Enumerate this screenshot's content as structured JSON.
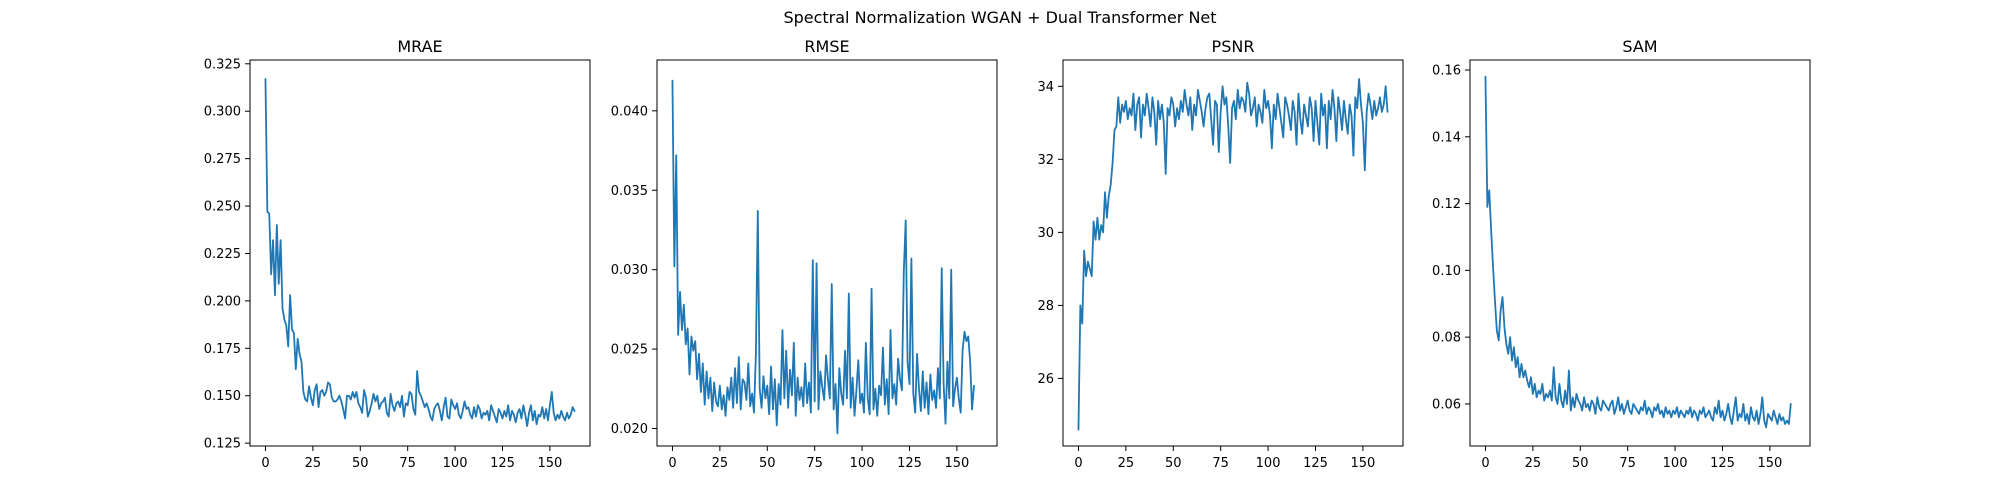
{
  "figure_title": "Spectral Normalization WGAN + Dual Transformer Net",
  "line_color": "#1f77b4",
  "chart_data": [
    {
      "type": "line",
      "title": "MRAE",
      "xlabel": "",
      "ylabel": "",
      "xlim": [
        -8.15,
        171.15
      ],
      "ylim": [
        0.1235,
        0.327
      ],
      "xticks": [
        0,
        25,
        50,
        75,
        100,
        125,
        150
      ],
      "yticks": [
        0.125,
        0.15,
        0.175,
        0.2,
        0.225,
        0.25,
        0.275,
        0.3,
        0.325
      ],
      "ytick_labels": [
        "0.125",
        "0.150",
        "0.175",
        "0.200",
        "0.225",
        "0.250",
        "0.275",
        "0.300",
        "0.325"
      ],
      "grid": false,
      "series": [
        {
          "values": [
            0.317,
            0.247,
            0.246,
            0.214,
            0.232,
            0.203,
            0.24,
            0.209,
            0.232,
            0.196,
            0.19,
            0.187,
            0.176,
            0.203,
            0.185,
            0.183,
            0.164,
            0.18,
            0.172,
            0.168,
            0.152,
            0.148,
            0.147,
            0.155,
            0.149,
            0.145,
            0.153,
            0.156,
            0.144,
            0.152,
            0.153,
            0.15,
            0.152,
            0.157,
            0.156,
            0.149,
            0.147,
            0.147,
            0.148,
            0.15,
            0.147,
            0.143,
            0.138,
            0.15,
            0.15,
            0.148,
            0.152,
            0.149,
            0.152,
            0.146,
            0.144,
            0.141,
            0.153,
            0.149,
            0.139,
            0.142,
            0.146,
            0.151,
            0.147,
            0.15,
            0.143,
            0.146,
            0.147,
            0.149,
            0.141,
            0.139,
            0.151,
            0.145,
            0.142,
            0.146,
            0.147,
            0.144,
            0.15,
            0.139,
            0.146,
            0.145,
            0.152,
            0.151,
            0.143,
            0.14,
            0.163,
            0.152,
            0.15,
            0.147,
            0.144,
            0.146,
            0.143,
            0.139,
            0.137,
            0.143,
            0.145,
            0.146,
            0.142,
            0.137,
            0.144,
            0.149,
            0.139,
            0.138,
            0.148,
            0.145,
            0.143,
            0.146,
            0.14,
            0.138,
            0.142,
            0.147,
            0.143,
            0.144,
            0.14,
            0.138,
            0.144,
            0.139,
            0.145,
            0.143,
            0.138,
            0.141,
            0.14,
            0.142,
            0.137,
            0.145,
            0.142,
            0.139,
            0.136,
            0.143,
            0.141,
            0.138,
            0.142,
            0.139,
            0.145,
            0.137,
            0.142,
            0.14,
            0.136,
            0.141,
            0.143,
            0.138,
            0.145,
            0.14,
            0.134,
            0.141,
            0.145,
            0.137,
            0.142,
            0.135,
            0.14,
            0.139,
            0.144,
            0.138,
            0.143,
            0.137,
            0.145,
            0.152,
            0.141,
            0.137,
            0.14,
            0.138,
            0.142,
            0.139,
            0.137,
            0.141,
            0.138,
            0.14,
            0.144,
            0.142
          ]
        }
      ]
    },
    {
      "type": "line",
      "title": "RMSE",
      "xlabel": "",
      "ylabel": "",
      "xlim": [
        -8.15,
        171.15
      ],
      "ylim": [
        0.0189,
        0.0432
      ],
      "xticks": [
        0,
        25,
        50,
        75,
        100,
        125,
        150
      ],
      "yticks": [
        0.02,
        0.025,
        0.03,
        0.035,
        0.04
      ],
      "ytick_labels": [
        "0.020",
        "0.025",
        "0.030",
        "0.035",
        "0.040"
      ],
      "grid": false,
      "series": [
        {
          "values": [
            0.0419,
            0.0302,
            0.0372,
            0.0259,
            0.0286,
            0.0262,
            0.0278,
            0.0253,
            0.0263,
            0.0234,
            0.0258,
            0.0249,
            0.0255,
            0.0231,
            0.0247,
            0.0223,
            0.0241,
            0.0215,
            0.0236,
            0.0219,
            0.0232,
            0.0211,
            0.0229,
            0.0217,
            0.0214,
            0.0227,
            0.0212,
            0.0221,
            0.0208,
            0.0226,
            0.0218,
            0.0232,
            0.0213,
            0.0238,
            0.0216,
            0.0245,
            0.0212,
            0.0231,
            0.0229,
            0.0218,
            0.0241,
            0.0214,
            0.0222,
            0.021,
            0.0247,
            0.0337,
            0.0225,
            0.0213,
            0.0233,
            0.0219,
            0.0227,
            0.0209,
            0.0239,
            0.0212,
            0.0231,
            0.0202,
            0.0228,
            0.0215,
            0.0262,
            0.0219,
            0.0249,
            0.0213,
            0.0237,
            0.0221,
            0.0254,
            0.0208,
            0.0232,
            0.0218,
            0.0226,
            0.0214,
            0.0241,
            0.0216,
            0.0229,
            0.021,
            0.0306,
            0.0217,
            0.0304,
            0.0212,
            0.0236,
            0.0226,
            0.0218,
            0.0246,
            0.0231,
            0.0219,
            0.0291,
            0.0212,
            0.0228,
            0.0197,
            0.0238,
            0.0222,
            0.0215,
            0.0249,
            0.0219,
            0.0285,
            0.0213,
            0.0232,
            0.0208,
            0.0224,
            0.0243,
            0.0216,
            0.0222,
            0.021,
            0.0254,
            0.0219,
            0.0209,
            0.0288,
            0.0212,
            0.0225,
            0.0208,
            0.0227,
            0.0221,
            0.0251,
            0.0215,
            0.0231,
            0.0209,
            0.0262,
            0.0219,
            0.0228,
            0.0215,
            0.0244,
            0.0231,
            0.0224,
            0.0299,
            0.0331,
            0.0242,
            0.0228,
            0.0307,
            0.0222,
            0.021,
            0.0247,
            0.0225,
            0.0211,
            0.0236,
            0.0213,
            0.0229,
            0.0209,
            0.0234,
            0.0218,
            0.0224,
            0.0213,
            0.0238,
            0.0219,
            0.0301,
            0.0228,
            0.0203,
            0.0242,
            0.0219,
            0.03,
            0.0214,
            0.0225,
            0.0232,
            0.0219,
            0.021,
            0.0249,
            0.0261,
            0.0255,
            0.0258,
            0.0242,
            0.0212,
            0.0227
          ]
        }
      ]
    },
    {
      "type": "line",
      "title": "PSNR",
      "xlabel": "",
      "ylabel": "",
      "xlim": [
        -8.15,
        171.15
      ],
      "ylim": [
        24.15,
        34.72
      ],
      "xticks": [
        0,
        25,
        50,
        75,
        100,
        125,
        150
      ],
      "yticks": [
        26,
        28,
        30,
        32,
        34
      ],
      "ytick_labels": [
        "26",
        "28",
        "30",
        "32",
        "34"
      ],
      "grid": false,
      "series": [
        {
          "values": [
            24.6,
            28.0,
            27.5,
            29.5,
            28.8,
            29.2,
            29.0,
            28.8,
            30.3,
            29.8,
            30.4,
            29.8,
            30.2,
            30.0,
            31.1,
            30.4,
            31.0,
            31.3,
            31.9,
            32.8,
            32.9,
            33.7,
            33.0,
            33.5,
            33.3,
            33.6,
            33.1,
            33.4,
            33.2,
            33.8,
            32.8,
            33.5,
            33.7,
            32.6,
            33.5,
            33.2,
            33.8,
            33.4,
            32.9,
            33.7,
            33.3,
            32.4,
            33.6,
            33.1,
            33.5,
            33.0,
            31.6,
            33.4,
            33.2,
            33.7,
            33.5,
            32.9,
            33.4,
            33.1,
            33.6,
            33.3,
            33.9,
            33.5,
            33.2,
            33.7,
            32.8,
            33.5,
            33.2,
            33.9,
            33.6,
            33.3,
            32.9,
            33.4,
            33.7,
            33.8,
            33.1,
            32.4,
            33.6,
            33.5,
            32.2,
            33.3,
            34.0,
            33.5,
            33.7,
            32.9,
            31.9,
            33.4,
            33.6,
            33.1,
            33.9,
            33.4,
            33.7,
            33.6,
            33.3,
            34.1,
            33.8,
            33.2,
            33.4,
            33.7,
            32.9,
            33.5,
            33.3,
            33.0,
            33.9,
            33.4,
            33.6,
            33.2,
            32.3,
            33.5,
            33.1,
            33.8,
            33.4,
            33.0,
            32.6,
            33.7,
            33.5,
            33.2,
            32.8,
            33.6,
            33.3,
            32.4,
            33.8,
            33.1,
            32.7,
            33.5,
            33.2,
            32.9,
            33.7,
            33.4,
            32.5,
            33.6,
            33.0,
            32.4,
            33.8,
            33.2,
            33.5,
            32.3,
            33.6,
            33.1,
            33.9,
            33.4,
            32.5,
            33.7,
            33.3,
            32.8,
            33.6,
            33.1,
            32.7,
            33.5,
            33.2,
            32.1,
            33.7,
            33.4,
            34.2,
            33.5,
            33.0,
            31.7,
            33.3,
            33.8,
            33.5,
            33.1,
            33.6,
            33.2,
            33.4,
            33.7,
            33.3,
            33.5,
            34.0,
            33.3
          ]
        }
      ]
    },
    {
      "type": "line",
      "title": "SAM",
      "xlabel": "",
      "ylabel": "",
      "xlim": [
        -8.15,
        171.15
      ],
      "ylim": [
        0.0474,
        0.163
      ],
      "xticks": [
        0,
        25,
        50,
        75,
        100,
        125,
        150
      ],
      "yticks": [
        0.06,
        0.08,
        0.1,
        0.12,
        0.14,
        0.16
      ],
      "ytick_labels": [
        "0.06",
        "0.08",
        "0.10",
        "0.12",
        "0.14",
        "0.16"
      ],
      "grid": false,
      "series": [
        {
          "values": [
            0.158,
            0.119,
            0.124,
            0.112,
            0.101,
            0.091,
            0.082,
            0.079,
            0.088,
            0.092,
            0.083,
            0.078,
            0.075,
            0.08,
            0.073,
            0.077,
            0.071,
            0.074,
            0.068,
            0.072,
            0.068,
            0.07,
            0.067,
            0.065,
            0.068,
            0.063,
            0.066,
            0.062,
            0.064,
            0.063,
            0.066,
            0.061,
            0.063,
            0.062,
            0.064,
            0.061,
            0.071,
            0.062,
            0.06,
            0.066,
            0.061,
            0.059,
            0.064,
            0.06,
            0.07,
            0.058,
            0.062,
            0.059,
            0.063,
            0.061,
            0.06,
            0.058,
            0.062,
            0.059,
            0.06,
            0.058,
            0.061,
            0.06,
            0.057,
            0.062,
            0.059,
            0.058,
            0.061,
            0.06,
            0.059,
            0.058,
            0.06,
            0.061,
            0.057,
            0.059,
            0.062,
            0.058,
            0.06,
            0.057,
            0.059,
            0.061,
            0.058,
            0.057,
            0.06,
            0.059,
            0.058,
            0.057,
            0.059,
            0.058,
            0.061,
            0.057,
            0.059,
            0.058,
            0.056,
            0.059,
            0.058,
            0.06,
            0.057,
            0.058,
            0.056,
            0.059,
            0.057,
            0.058,
            0.056,
            0.058,
            0.057,
            0.059,
            0.056,
            0.058,
            0.057,
            0.056,
            0.058,
            0.057,
            0.059,
            0.056,
            0.058,
            0.057,
            0.055,
            0.058,
            0.057,
            0.059,
            0.056,
            0.057,
            0.058,
            0.056,
            0.055,
            0.059,
            0.057,
            0.061,
            0.056,
            0.058,
            0.055,
            0.057,
            0.06,
            0.056,
            0.054,
            0.058,
            0.062,
            0.055,
            0.057,
            0.056,
            0.06,
            0.055,
            0.057,
            0.054,
            0.059,
            0.056,
            0.055,
            0.058,
            0.054,
            0.057,
            0.062,
            0.055,
            0.053,
            0.057,
            0.056,
            0.055,
            0.058,
            0.056,
            0.054,
            0.057,
            0.055,
            0.056,
            0.054,
            0.055,
            0.054,
            0.06
          ]
        }
      ]
    }
  ]
}
